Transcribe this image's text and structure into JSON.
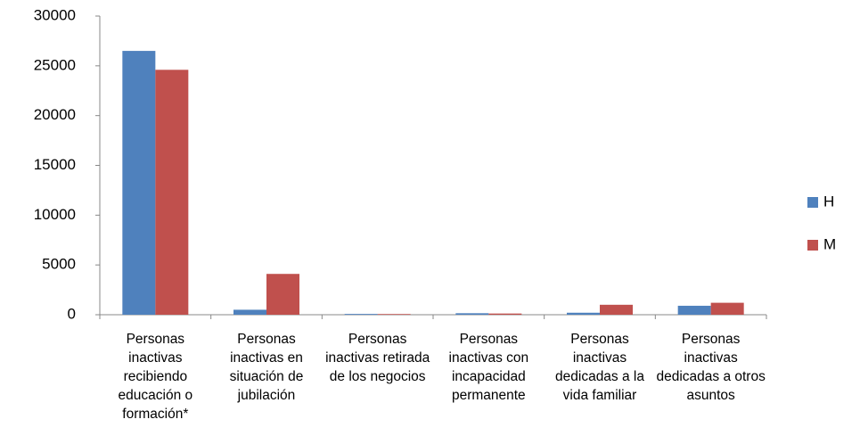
{
  "chart_data": {
    "type": "bar",
    "categories": [
      "Personas inactivas recibiendo educación o formación*",
      "Personas inactivas en situación de jubilación",
      "Personas inactivas retirada de los negocios",
      "Personas inactivas con incapacidad permanente",
      "Personas inactivas dedicadas a la vida familiar",
      "Personas inactivas dedicadas a otros asuntos"
    ],
    "series": [
      {
        "name": "H",
        "color": "#4f81bd",
        "values": [
          26500,
          500,
          80,
          150,
          200,
          900
        ]
      },
      {
        "name": "M",
        "color": "#c0504d",
        "values": [
          24600,
          4100,
          70,
          120,
          1000,
          1200
        ]
      }
    ],
    "ylim": [
      0,
      30000
    ],
    "yticks": [
      0,
      5000,
      10000,
      15000,
      20000,
      25000,
      30000
    ],
    "grid": false,
    "legend": "right"
  }
}
